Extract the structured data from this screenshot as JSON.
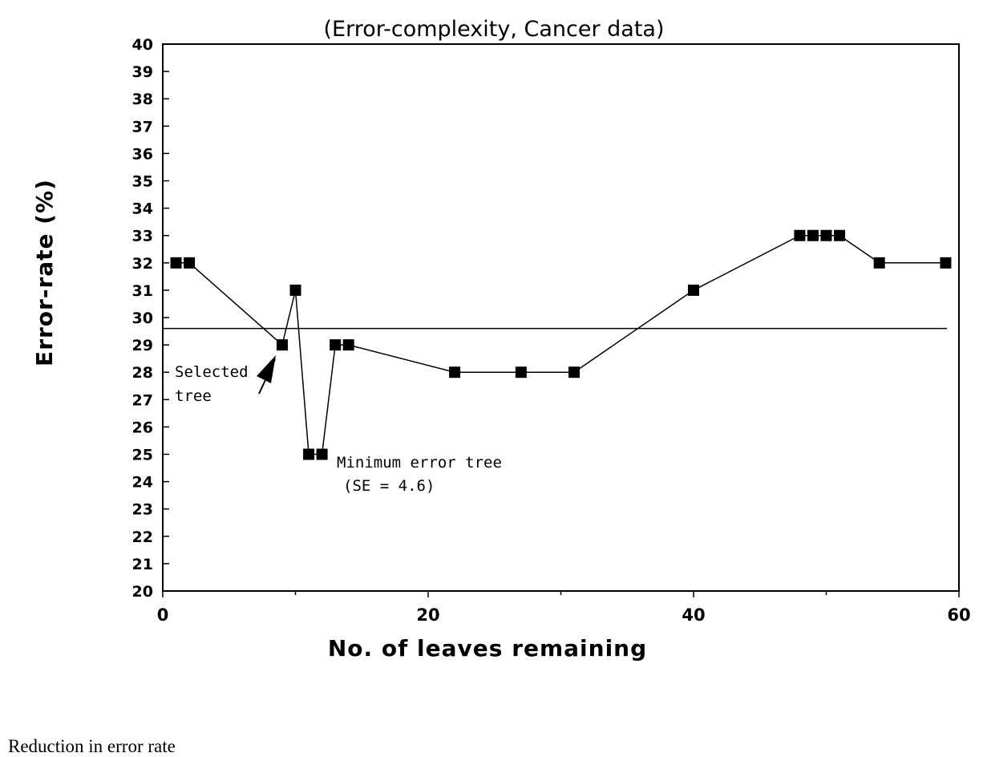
{
  "chart_data": {
    "type": "line",
    "title": "(Error-complexity, Cancer data)",
    "xlabel": "No. of leaves remaining",
    "ylabel": "Error-rate (%)",
    "xlim": [
      0,
      60
    ],
    "ylim": [
      20,
      40
    ],
    "x_ticks": [
      0,
      20,
      40,
      60
    ],
    "y_ticks": [
      20,
      21,
      22,
      23,
      24,
      25,
      26,
      27,
      28,
      29,
      30,
      31,
      32,
      33,
      34,
      35,
      36,
      37,
      38,
      39,
      40
    ],
    "grid": false,
    "series": [
      {
        "marker": "square",
        "color": "#000000",
        "x": [
          1,
          2,
          9,
          10,
          11,
          12,
          13,
          14,
          22,
          27,
          31,
          40,
          48,
          49,
          50,
          51,
          54,
          59
        ],
        "y": [
          32,
          32,
          29,
          31,
          25,
          25,
          29,
          29,
          28,
          28,
          28,
          31,
          33,
          33,
          33,
          33,
          32,
          32
        ]
      }
    ],
    "reference_line": {
      "y": 29.6
    },
    "annotations": [
      {
        "label": "selected",
        "lines": [
          "Selected",
          "tree"
        ],
        "point": [
          9,
          29
        ]
      },
      {
        "label": "minimum",
        "lines": [
          "Minimum error tree",
          "(SE = 4.6)"
        ],
        "point": [
          11.5,
          25
        ]
      }
    ]
  },
  "page": {
    "footer_text": "Reduction in error rate"
  }
}
